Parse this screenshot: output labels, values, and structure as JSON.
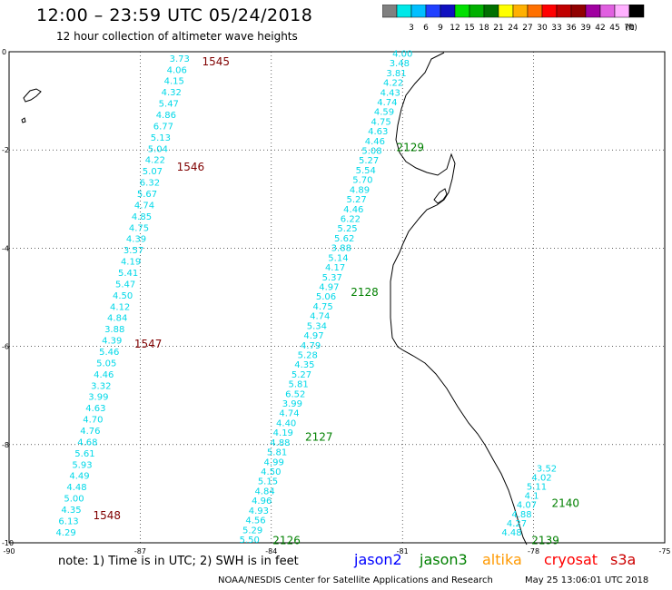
{
  "header": {
    "title": "12:00 – 23:59 UTC 05/24/2018",
    "subtitle": "12 hour collection of altimeter wave heights"
  },
  "legend": {
    "unit": "(ft)",
    "entries": [
      {
        "label": "",
        "color": "#808080"
      },
      {
        "label": "3",
        "color": "#00e8e8"
      },
      {
        "label": "6",
        "color": "#00bfff"
      },
      {
        "label": "9",
        "color": "#2040ff"
      },
      {
        "label": "12",
        "color": "#1010c0"
      },
      {
        "label": "15",
        "color": "#00e000"
      },
      {
        "label": "18",
        "color": "#00b000"
      },
      {
        "label": "21",
        "color": "#007000"
      },
      {
        "label": "24",
        "color": "#ffff00"
      },
      {
        "label": "27",
        "color": "#ffb000"
      },
      {
        "label": "30",
        "color": "#ff7000"
      },
      {
        "label": "33",
        "color": "#ff0000"
      },
      {
        "label": "36",
        "color": "#c00000"
      },
      {
        "label": "39",
        "color": "#900000"
      },
      {
        "label": "42",
        "color": "#a000a0"
      },
      {
        "label": "45",
        "color": "#e060e0"
      },
      {
        "label": "70",
        "color": "#ffb0ff"
      },
      {
        "label": "",
        "color": "#000000"
      }
    ]
  },
  "axes": {
    "x_ticks": [
      "-90",
      "-87",
      "-84",
      "-81",
      "-78",
      "-75"
    ],
    "y_ticks": [
      "0",
      "-2",
      "-4",
      "-6",
      "-8",
      "-10"
    ]
  },
  "tracks": [
    {
      "passes": [
        {
          "time": "1545",
          "lat": -0.2
        },
        {
          "time": "1546",
          "lat": -2.35
        },
        {
          "time": "1547",
          "lat": -5.95
        },
        {
          "time": "1548",
          "lat": -9.45
        }
      ],
      "time_color": "#800000",
      "value_color": "#00d8e8",
      "values": [
        "3.73",
        "4.06",
        "4.15",
        "4.32",
        "5.47",
        "4.86",
        "6.77",
        "5.13",
        "5.04",
        "4.22",
        "5.07",
        "6.32",
        "5.67",
        "4.74",
        "4.85",
        "4.75",
        "4.39",
        "3.57",
        "4.19",
        "5.41",
        "5.47",
        "4.50",
        "4.12",
        "4.84",
        "3.88",
        "4.39",
        "5.46",
        "5.05",
        "4.46",
        "3.32",
        "3.99",
        "4.63",
        "4.70",
        "4.76",
        "4.68",
        "5.61",
        "5.93",
        "4.49",
        "4.48",
        "5.00",
        "4.35",
        "6.13",
        "4.29"
      ],
      "lon_start": -86.1,
      "lat_start": -0.2,
      "lon_end": -88.7,
      "lat_end": -9.85
    },
    {
      "passes": [
        {
          "time": "2129",
          "lat": -1.95
        },
        {
          "time": "2128",
          "lat": -4.9
        },
        {
          "time": "2127",
          "lat": -7.85
        },
        {
          "time": "2126",
          "lat": -9.95
        }
      ],
      "time_color": "#008000",
      "value_color": "#00d8e8",
      "values": [
        "4.00",
        "3.48",
        "3.81",
        "4.22",
        "4.43",
        "4.74",
        "4.59",
        "4.75",
        "4.63",
        "4.46",
        "5.08",
        "5.27",
        "5.54",
        "5.70",
        "4.89",
        "5.27",
        "4.46",
        "6.22",
        "5.25",
        "5.62",
        "3.88",
        "5.14",
        "4.17",
        "5.37",
        "4.97",
        "5.06",
        "4.75",
        "4.74",
        "5.34",
        "4.97",
        "4.79",
        "5.28",
        "4.35",
        "5.27",
        "5.81",
        "6.52",
        "3.99",
        "4.74",
        "4.40",
        "4.19",
        "4.88",
        "5.81",
        "4.99",
        "4.50",
        "5.15",
        "4.84",
        "4.96",
        "4.93",
        "4.56",
        "5.29",
        "5.50"
      ],
      "lon_start": -81.0,
      "lat_start": -0.1,
      "lon_end": -84.5,
      "lat_end": -10.0
    },
    {
      "passes": [
        {
          "time": "2140",
          "lat": -9.2
        },
        {
          "time": "2139",
          "lat": -9.95
        }
      ],
      "time_color": "#008000",
      "value_color": "#00d8e8",
      "values": [
        "3.52",
        "4.02",
        "5.11",
        "4.1",
        "4.07",
        "4.88",
        "4.27",
        "4.48"
      ],
      "lon_start": -77.7,
      "lat_start": -8.55,
      "lon_end": -78.5,
      "lat_end": -9.85
    }
  ],
  "footer": {
    "note": "note:  1) Time is in UTC; 2) SWH is in feet",
    "satellites": [
      {
        "name": "jason2",
        "color": "#0000ff"
      },
      {
        "name": "jason3",
        "color": "#008000"
      },
      {
        "name": "altika",
        "color": "#ff9900"
      },
      {
        "name": "cryosat",
        "color": "#ff0000"
      },
      {
        "name": "s3a",
        "color": "#cc0000"
      }
    ],
    "credit": "NOAA/NESDIS Center for Satellite Applications and Research",
    "timestamp": "May 25 13:06:01 UTC 2018"
  }
}
